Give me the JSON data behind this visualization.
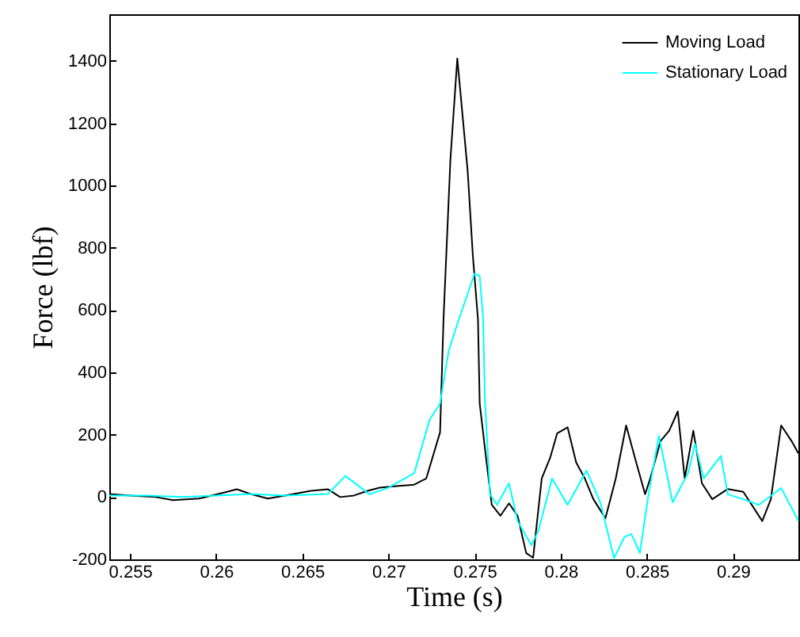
{
  "chart_data": {
    "type": "line",
    "xlabel": "Time (s)",
    "ylabel": "Force (lbf)",
    "xlim": [
      0.2538,
      0.2938
    ],
    "ylim": [
      -200,
      1550
    ],
    "xticks": [
      0.255,
      0.26,
      0.265,
      0.27,
      0.275,
      0.28,
      0.285,
      0.29
    ],
    "yticks": [
      -200,
      0,
      200,
      400,
      600,
      800,
      1000,
      1200,
      1400
    ],
    "grid": false,
    "legend": "top right",
    "line_style": "solid",
    "series": [
      {
        "name": "Moving Load",
        "color": "#000000",
        "x": [
          0.2538,
          0.255,
          0.2565,
          0.2575,
          0.259,
          0.2605,
          0.2612,
          0.262,
          0.263,
          0.264,
          0.2655,
          0.2665,
          0.2672,
          0.268,
          0.2688,
          0.2695,
          0.2705,
          0.2715,
          0.2722,
          0.273,
          0.2732,
          0.2736,
          0.274,
          0.2746,
          0.2749,
          0.2752,
          0.2753,
          0.2757,
          0.276,
          0.2765,
          0.277,
          0.2775,
          0.278,
          0.2784,
          0.2789,
          0.2794,
          0.2798,
          0.2804,
          0.2809,
          0.2814,
          0.2819,
          0.2826,
          0.2832,
          0.2838,
          0.2843,
          0.2849,
          0.2852,
          0.2858,
          0.2863,
          0.2868,
          0.2872,
          0.2877,
          0.2882,
          0.2888,
          0.2897,
          0.2906,
          0.2917,
          0.2922,
          0.2928,
          0.2934,
          0.2938
        ],
        "values": [
          10,
          5,
          0,
          -10,
          -5,
          15,
          25,
          10,
          -5,
          5,
          20,
          25,
          0,
          5,
          20,
          30,
          35,
          40,
          60,
          208,
          572,
          1084,
          1408,
          1048,
          777,
          570,
          300,
          111,
          -25,
          -60,
          -20,
          -60,
          -180,
          -195,
          60,
          128,
          205,
          224,
          111,
          60,
          -7,
          -68,
          60,
          230,
          128,
          9,
          60,
          180,
          213,
          275,
          60,
          213,
          44,
          -7,
          26,
          17,
          -77,
          -7,
          230,
          180,
          140
        ]
      },
      {
        "name": "Stationary Load",
        "color": "#00ffff",
        "x": [
          0.2538,
          0.256,
          0.258,
          0.26,
          0.262,
          0.264,
          0.2665,
          0.2675,
          0.2689,
          0.27,
          0.2715,
          0.2724,
          0.273,
          0.2735,
          0.2741,
          0.275,
          0.2753,
          0.2755,
          0.2756,
          0.2759,
          0.2763,
          0.277,
          0.2775,
          0.2783,
          0.2787,
          0.2795,
          0.2804,
          0.2815,
          0.2823,
          0.2831,
          0.2837,
          0.2841,
          0.2846,
          0.2851,
          0.2857,
          0.2865,
          0.2874,
          0.2878,
          0.2883,
          0.2893,
          0.2897,
          0.2906,
          0.2915,
          0.2928,
          0.2938
        ],
        "values": [
          5,
          5,
          0,
          5,
          10,
          5,
          10,
          68,
          9,
          30,
          77,
          249,
          300,
          470,
          572,
          717,
          710,
          572,
          316,
          9,
          -25,
          44,
          -77,
          -154,
          -110,
          60,
          -25,
          85,
          -17,
          -196,
          -128,
          -119,
          -179,
          9,
          196,
          -17,
          77,
          171,
          60,
          132,
          9,
          -7,
          -25,
          29,
          -77
        ]
      }
    ]
  }
}
